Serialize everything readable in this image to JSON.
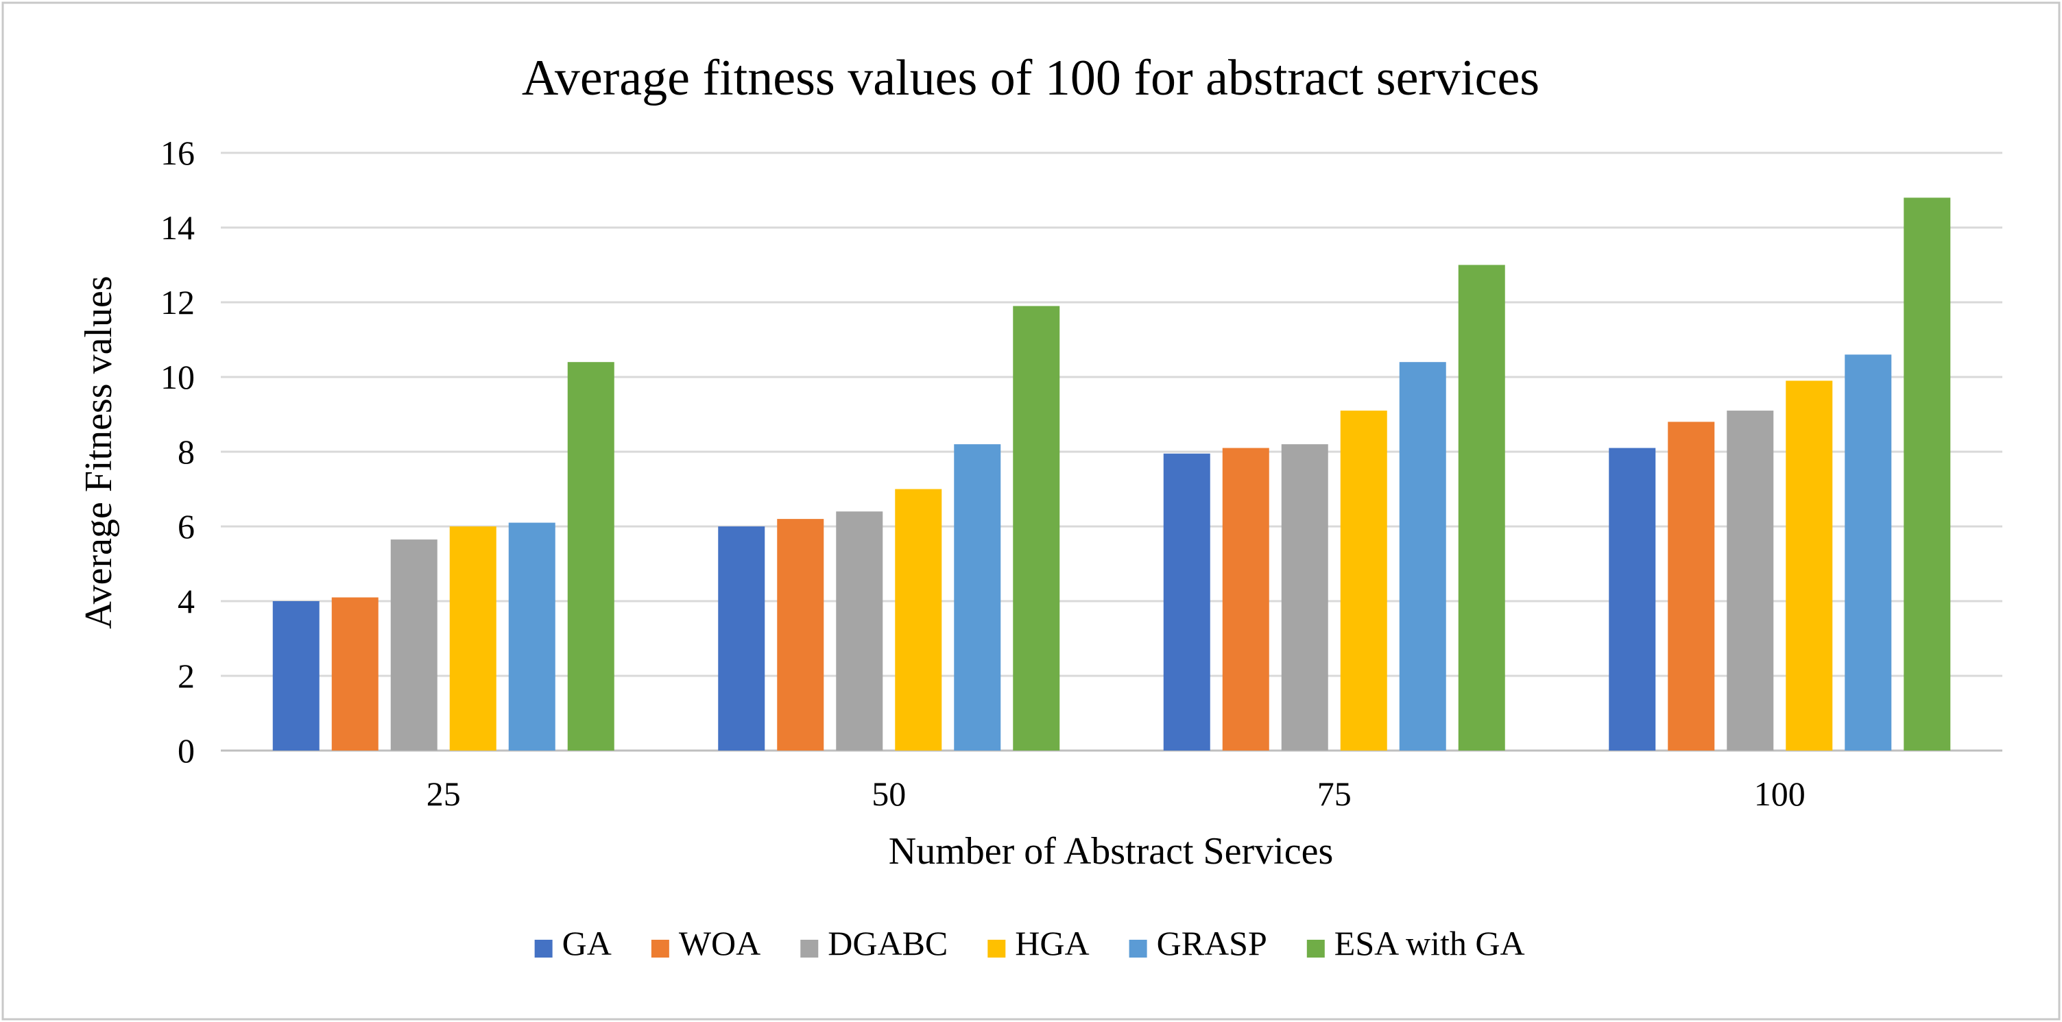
{
  "chart_data": {
    "type": "bar",
    "title": "Average fitness values of 100 for abstract services",
    "xlabel": "Number of Abstract Services",
    "ylabel": "Average Fitness values",
    "categories": [
      "25",
      "50",
      "75",
      "100"
    ],
    "ylim": [
      0,
      16
    ],
    "yticks": [
      "0",
      "2",
      "4",
      "6",
      "8",
      "10",
      "12",
      "14",
      "16"
    ],
    "grid": true,
    "legend_position": "bottom",
    "series": [
      {
        "name": "GA",
        "color": "#4472C4",
        "values": [
          4.0,
          6.0,
          7.95,
          8.1
        ]
      },
      {
        "name": "WOA",
        "color": "#ED7D31",
        "values": [
          4.1,
          6.2,
          8.1,
          8.8
        ]
      },
      {
        "name": "DGABC",
        "color": "#A5A5A5",
        "values": [
          5.65,
          6.4,
          8.2,
          9.1
        ]
      },
      {
        "name": "HGA",
        "color": "#FFC000",
        "values": [
          6.0,
          7.0,
          9.1,
          9.9
        ]
      },
      {
        "name": "GRASP",
        "color": "#5B9BD5",
        "values": [
          6.1,
          8.2,
          10.4,
          10.6
        ]
      },
      {
        "name": "ESA with GA",
        "color": "#70AD47",
        "values": [
          10.4,
          11.9,
          13.0,
          14.8
        ]
      }
    ]
  }
}
